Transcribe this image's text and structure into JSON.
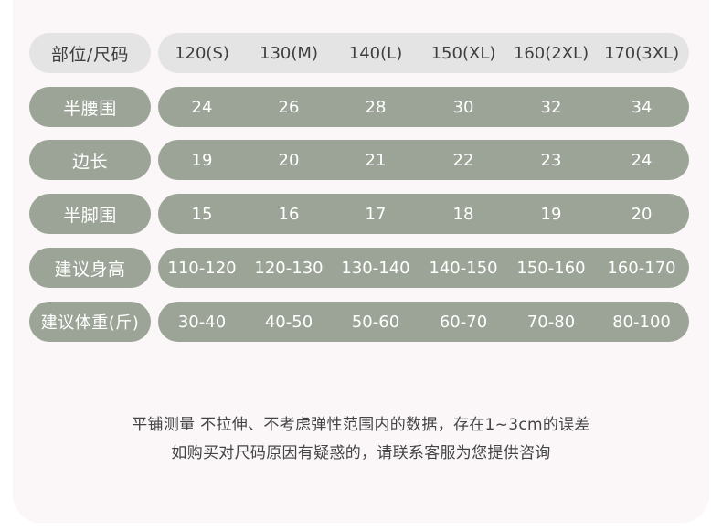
{
  "table": {
    "header": {
      "label": "部位/尺码",
      "values": [
        "120(S)",
        "130(M)",
        "140(L)",
        "150(XL)",
        "160(2XL)",
        "170(3XL)"
      ]
    },
    "rows": [
      {
        "label": "半腰围",
        "values": [
          "24",
          "26",
          "28",
          "30",
          "32",
          "34"
        ]
      },
      {
        "label": "边长",
        "values": [
          "19",
          "20",
          "21",
          "22",
          "23",
          "24"
        ]
      },
      {
        "label": "半脚围",
        "values": [
          "15",
          "16",
          "17",
          "18",
          "19",
          "20"
        ]
      },
      {
        "label": "建议身高",
        "values": [
          "110-120",
          "120-130",
          "130-140",
          "140-150",
          "150-160",
          "160-170"
        ]
      },
      {
        "label": "建议体重(斤)",
        "values": [
          "30-40",
          "40-50",
          "50-60",
          "60-70",
          "70-80",
          "80-100"
        ]
      }
    ]
  },
  "notes": {
    "line1": "平铺测量 不拉伸、不考虑弹性范围内的数据，存在1~3cm的误差",
    "line2": "如购买对尺码原因有疑惑的，请联系客服为您提供咨询"
  },
  "colors": {
    "header_bg": "#e5e4e4",
    "row_bg": "#9ca497",
    "page_bg": "#fbf7f8"
  }
}
